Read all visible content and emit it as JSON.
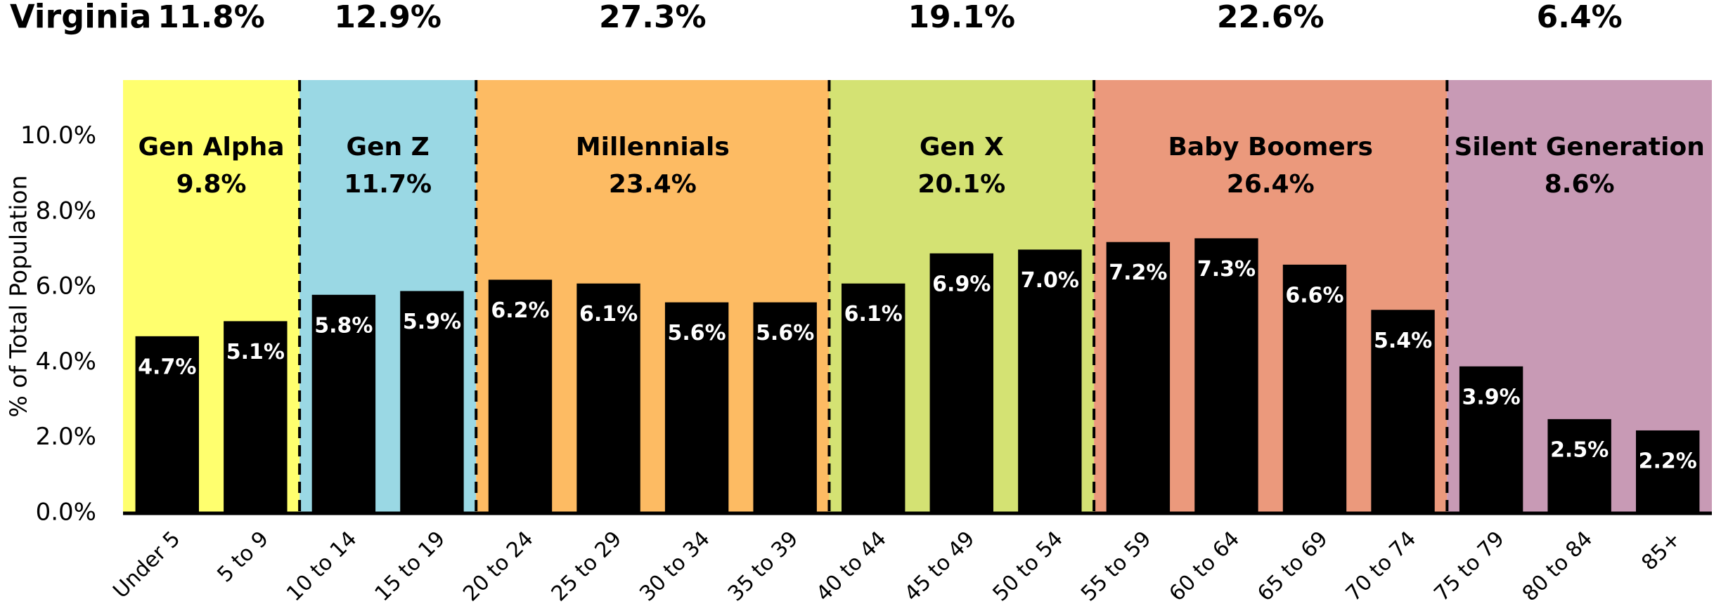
{
  "chart_data": {
    "type": "bar",
    "title": "Virginia",
    "y_label": "% of Total Population",
    "ylim": [
      0,
      11.5
    ],
    "yticks": [
      {
        "value": 0,
        "label": "0.0%"
      },
      {
        "value": 2,
        "label": "2.0%"
      },
      {
        "value": 4,
        "label": "4.0%"
      },
      {
        "value": 6,
        "label": "6.0%"
      },
      {
        "value": 8,
        "label": "8.0%"
      },
      {
        "value": 10,
        "label": "10.0%"
      }
    ],
    "bar_color": "#000000",
    "groups": [
      {
        "name": "Gen Alpha",
        "share": 9.8,
        "share_label": "9.8%",
        "top_share": 11.8,
        "top_share_label": "11.8%",
        "color": "#ffff6e",
        "categories": [
          "Under 5",
          "5 to 9"
        ],
        "values": [
          4.7,
          5.1
        ],
        "value_labels": [
          "4.7%",
          "5.1%"
        ]
      },
      {
        "name": "Gen Z",
        "share": 11.7,
        "share_label": "11.7%",
        "top_share": 12.9,
        "top_share_label": "12.9%",
        "color": "#9ad8e4",
        "categories": [
          "10 to 14",
          "15 to 19"
        ],
        "values": [
          5.8,
          5.9
        ],
        "value_labels": [
          "5.8%",
          "5.9%"
        ]
      },
      {
        "name": "Millennials",
        "share": 23.4,
        "share_label": "23.4%",
        "top_share": 27.3,
        "top_share_label": "27.3%",
        "color": "#fdbb63",
        "categories": [
          "20 to 24",
          "25 to 29",
          "30 to 34",
          "35 to 39"
        ],
        "values": [
          6.2,
          6.1,
          5.6,
          5.6
        ],
        "value_labels": [
          "6.2%",
          "6.1%",
          "5.6%",
          "5.6%"
        ]
      },
      {
        "name": "Gen X",
        "share": 20.1,
        "share_label": "20.1%",
        "top_share": 19.1,
        "top_share_label": "19.1%",
        "color": "#d4e273",
        "categories": [
          "40 to 44",
          "45 to 49",
          "50 to 54"
        ],
        "values": [
          6.1,
          6.9,
          7.0
        ],
        "value_labels": [
          "6.1%",
          "6.9%",
          "7.0%"
        ]
      },
      {
        "name": "Baby Boomers",
        "share": 26.4,
        "share_label": "26.4%",
        "top_share": 22.6,
        "top_share_label": "22.6%",
        "color": "#eb997c",
        "categories": [
          "55 to 59",
          "60 to 64",
          "65 to 69",
          "70 to 74"
        ],
        "values": [
          7.2,
          7.3,
          6.6,
          5.4
        ],
        "value_labels": [
          "7.2%",
          "7.3%",
          "6.6%",
          "5.4%"
        ]
      },
      {
        "name": "Silent Generation",
        "share": 8.6,
        "share_label": "8.6%",
        "top_share": 6.4,
        "top_share_label": "6.4%",
        "color": "#c89ab5",
        "categories": [
          "75 to 79",
          "80 to 84",
          "85+"
        ],
        "values": [
          3.9,
          2.5,
          2.2
        ],
        "value_labels": [
          "3.9%",
          "2.5%",
          "2.2%"
        ]
      }
    ]
  }
}
